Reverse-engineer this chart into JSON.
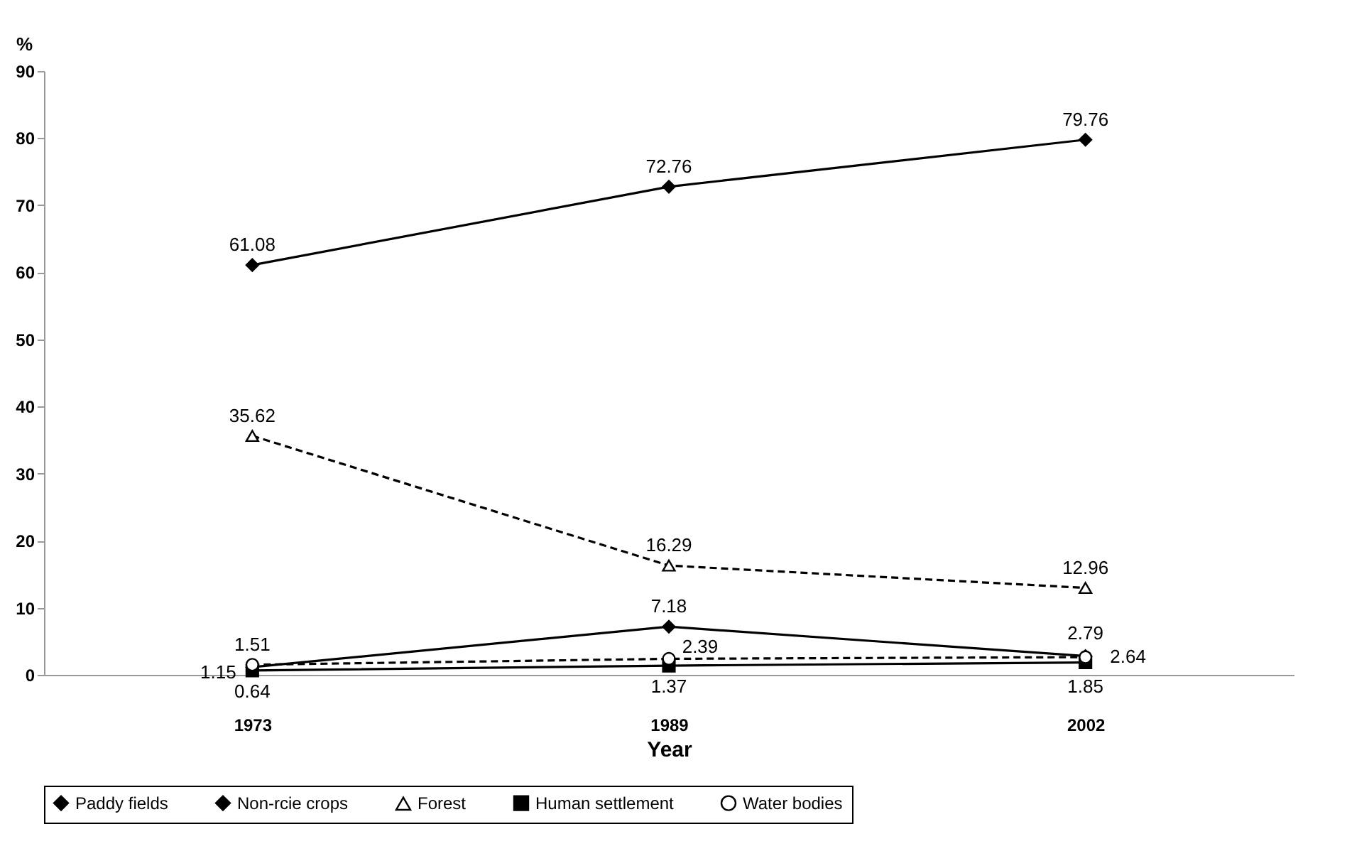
{
  "chart_data": {
    "type": "line",
    "xlabel": "Year",
    "ylabel": "%",
    "categories": [
      "1973",
      "1989",
      "2002"
    ],
    "series": [
      {
        "name": "Paddy fields",
        "color": "#000000",
        "marker": "diamond",
        "line_style": "solid",
        "values": [
          61.08,
          72.76,
          79.76
        ]
      },
      {
        "name": "Non-rcie crops",
        "color": "#000000",
        "marker": "diamond",
        "line_style": "solid",
        "values": [
          1.15,
          7.18,
          2.79
        ]
      },
      {
        "name": "Forest",
        "color": "#000000",
        "marker": "triangle",
        "line_style": "dashed",
        "values": [
          35.62,
          16.29,
          12.96
        ]
      },
      {
        "name": "Human settlement",
        "color": "#000000",
        "marker": "square",
        "line_style": "solid",
        "values": [
          0.64,
          1.37,
          1.85
        ]
      },
      {
        "name": "Water bodies",
        "color": "#000000",
        "marker": "circle",
        "line_style": "dashed",
        "values": [
          1.51,
          2.39,
          2.64
        ]
      }
    ],
    "ylim": [
      0,
      90
    ],
    "yticks": [
      0,
      10,
      20,
      30,
      40,
      50,
      60,
      70,
      80,
      90
    ],
    "data_labels": true,
    "grid": false,
    "legend": "bottom"
  }
}
